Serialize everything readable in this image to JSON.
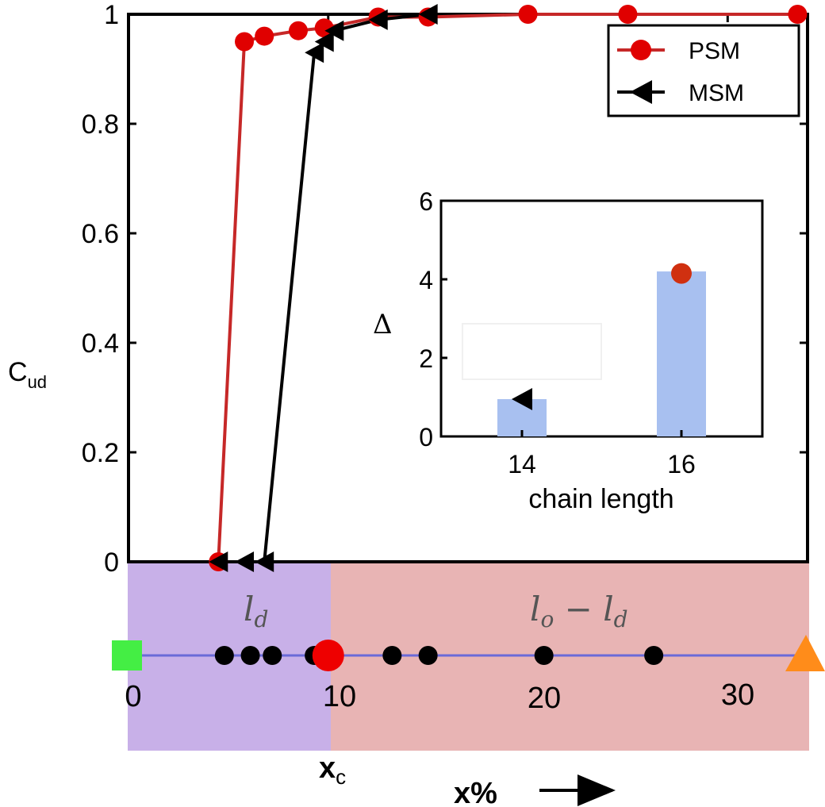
{
  "chart_data": [
    {
      "type": "line",
      "ylabel_main": "C",
      "ylabel_sub": "ud",
      "yticks": [
        "0",
        "0.2",
        "0.4",
        "0.6",
        "0.8",
        "1"
      ],
      "ylim": [
        0,
        1
      ],
      "xlim": [
        0,
        34
      ],
      "grid": false,
      "legend_placement": "top-right",
      "series": [
        {
          "name": "PSM",
          "color": "#e00000",
          "line_color": "#c62828",
          "marker": "circle",
          "x": [
            4.5,
            5.8,
            6.8,
            8.5,
            9.8,
            12.5,
            15,
            20,
            25,
            33.5
          ],
          "y": [
            0,
            0.95,
            0.96,
            0.97,
            0.975,
            0.995,
            0.995,
            1.0,
            1.0,
            1.0
          ]
        },
        {
          "name": "MSM",
          "color": "#000000",
          "line_color": "#000000",
          "marker": "triangle-left",
          "x": [
            4.5,
            5.8,
            6.8,
            9.3,
            9.8,
            10.3,
            12.5,
            15
          ],
          "y": [
            0,
            0,
            0,
            0.93,
            0.95,
            0.97,
            0.99,
            1.0
          ]
        }
      ]
    },
    {
      "type": "bar",
      "xlabel": "chain length",
      "ylabel": "Δ",
      "categories": [
        "14",
        "16"
      ],
      "values": [
        0.95,
        4.2
      ],
      "ylim": [
        0,
        6
      ],
      "yticks": [
        "0",
        "2",
        "4",
        "6"
      ],
      "bar_color": "#a8c0f0",
      "markers": [
        {
          "category": "14",
          "series": "MSM",
          "value": 0.95
        },
        {
          "category": "16",
          "series": "PSM",
          "value": 4.15
        }
      ]
    }
  ],
  "axis_strip": {
    "xticks": [
      "0",
      "10",
      "20",
      "30"
    ],
    "region_left_label": "l_d",
    "region_right_label": "l_o − l_d",
    "left_region_color": "#c8b0e8",
    "right_region_color": "#e8b4b4",
    "line_color": "#6a6ad8",
    "dots_x": [
      4.8,
      6.1,
      7.2,
      9.3,
      13.2,
      15.0,
      20.8,
      26.3
    ],
    "critical_x": 10.0,
    "start_color": "#44ee44",
    "end_color": "#ff8c1a",
    "xc_label_main": "x",
    "xc_label_sub": "c",
    "xlabel": "x%"
  }
}
